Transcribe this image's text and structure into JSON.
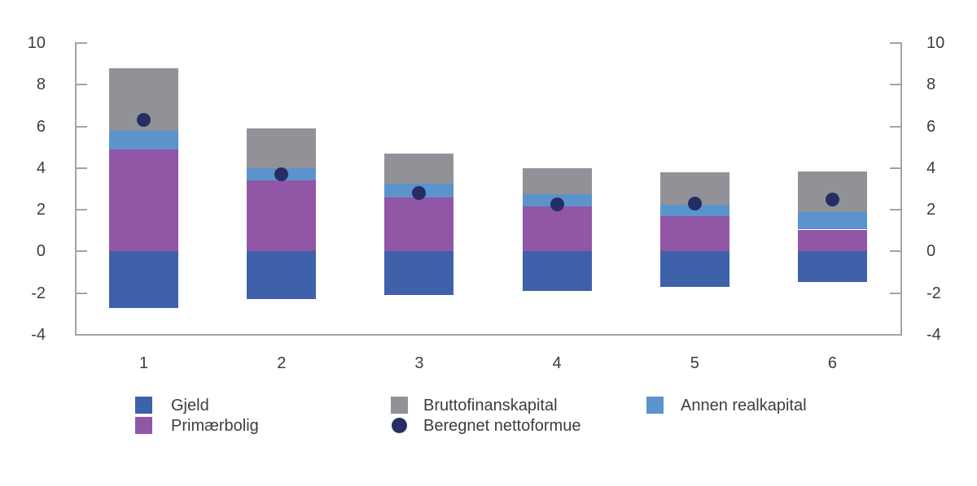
{
  "chart_data": {
    "type": "bar",
    "stacked": true,
    "title": "",
    "xlabel": "",
    "ylabel": "",
    "categories": [
      "1",
      "2",
      "3",
      "4",
      "5",
      "6"
    ],
    "series": [
      {
        "name": "Gjeld",
        "color": "#3e61a9",
        "values": [
          -2.7,
          -2.3,
          -2.1,
          -1.9,
          -1.7,
          -1.45
        ]
      },
      {
        "name": "Primærbolig",
        "color": "#9156a6",
        "values": [
          4.9,
          3.4,
          2.6,
          2.15,
          1.7,
          1.05
        ]
      },
      {
        "name": "Annen realkapital",
        "color": "#5b93cd",
        "values": [
          0.9,
          0.6,
          0.65,
          0.6,
          0.55,
          0.85
        ]
      },
      {
        "name": "Bruttofinanskapital",
        "color": "#919297",
        "values": [
          3.0,
          1.9,
          1.45,
          1.25,
          1.55,
          1.95
        ]
      }
    ],
    "points": {
      "name": "Beregnet nettoformue",
      "color": "#252e63",
      "marker": "circle",
      "values": [
        6.3,
        3.7,
        2.8,
        2.25,
        2.3,
        2.5
      ]
    },
    "ylim": [
      -4,
      10
    ],
    "yticks": [
      10,
      8,
      6,
      4,
      2,
      0,
      -2,
      -4
    ],
    "ytick_labels": [
      "10",
      "8",
      "6",
      "4",
      "2",
      "0",
      "-2",
      "-4"
    ],
    "y_axis_sides": [
      "left",
      "right"
    ],
    "grid": false,
    "legend_position": "bottom"
  },
  "legend": {
    "columns": [
      [
        {
          "label": "Gjeld",
          "swatch": "square",
          "color": "#3e61a9"
        },
        {
          "label": "Primærbolig",
          "swatch": "square",
          "color": "#9156a6"
        }
      ],
      [
        {
          "label": "Bruttofinanskapital",
          "swatch": "square",
          "color": "#919297"
        },
        {
          "label": "Beregnet nettoformue",
          "swatch": "circle",
          "color": "#252e63"
        }
      ],
      [
        {
          "label": "Annen realkapital",
          "swatch": "square",
          "color": "#5b93cd"
        }
      ]
    ]
  },
  "colors": {
    "axis": "#a3a3a3",
    "text": "#3d3d3d",
    "background": "#ffffff"
  }
}
